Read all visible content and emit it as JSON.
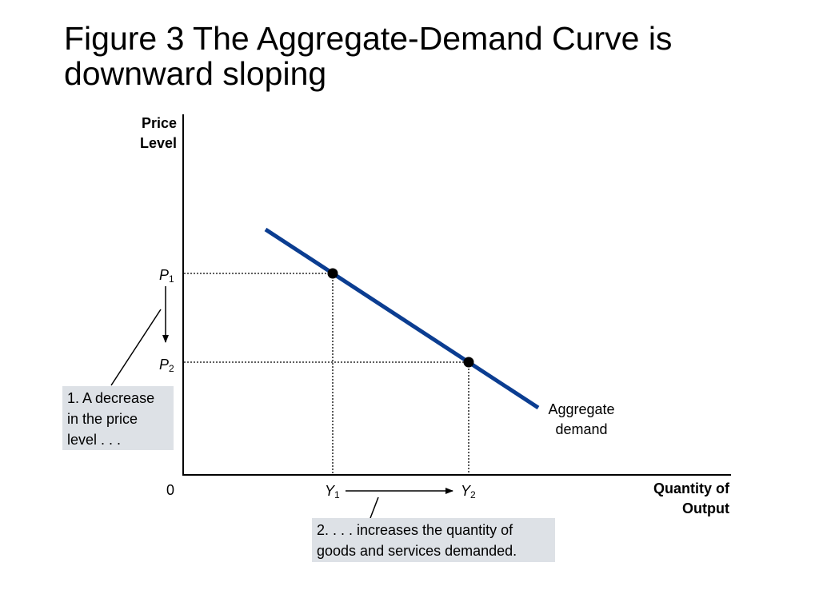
{
  "slide": {
    "title_line1": "Figure 3 The Aggregate-Demand Curve is",
    "title_line2": "downward sloping"
  },
  "axes": {
    "y_label_line1": "Price",
    "y_label_line2": "Level",
    "x_label_line1": "Quantity of",
    "x_label_line2": "Output",
    "origin": "0"
  },
  "points": {
    "p1": {
      "letter": "P",
      "sub": "1"
    },
    "p2": {
      "letter": "P",
      "sub": "2"
    },
    "y1": {
      "letter": "Y",
      "sub": "1"
    },
    "y2": {
      "letter": "Y",
      "sub": "2"
    }
  },
  "curve": {
    "label_line1": "Aggregate",
    "label_line2": "demand",
    "color": "#0b3d91"
  },
  "callouts": {
    "price_line1": "1. A decrease",
    "price_line2": "in the price",
    "price_line3": "level . . .",
    "quantity_line1": "2. . . . increases the quantity of",
    "quantity_line2": "goods and services demanded.",
    "background": "#dde1e6"
  }
}
